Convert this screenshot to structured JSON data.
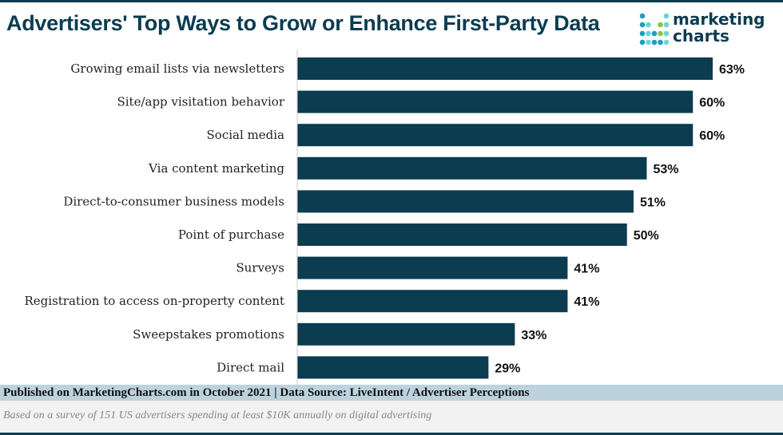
{
  "header": {
    "title": "Advertisers' Top Ways to Grow or Enhance First-Party Data"
  },
  "logo": {
    "line1": "marketing",
    "line2": "charts"
  },
  "footer": {
    "published": "Published on MarketingCharts.com in October 2021 | Data Source: LiveIntent / Advertiser Perceptions",
    "note": "Based on a survey of 151 US advertisers spending at least $10K annually on digital advertising"
  },
  "chart_data": {
    "type": "bar",
    "orientation": "horizontal",
    "title": "Advertisers' Top Ways to Grow or Enhance First-Party Data",
    "categories": [
      "Growing email lists via newsletters",
      "Site/app visitation behavior",
      "Social media",
      "Via content marketing",
      "Direct-to-consumer business models",
      "Point of purchase",
      "Surveys",
      "Registration to access on-property content",
      "Sweepstakes promotions",
      "Direct mail"
    ],
    "values": [
      63,
      60,
      60,
      53,
      51,
      50,
      41,
      41,
      33,
      29
    ],
    "labels": [
      "63%",
      "60%",
      "60%",
      "53%",
      "51%",
      "50%",
      "41%",
      "41%",
      "33%",
      "29%"
    ],
    "unit": "%",
    "xlim": [
      0,
      63
    ],
    "grid": false,
    "bar_color": "#0b3c4f"
  }
}
